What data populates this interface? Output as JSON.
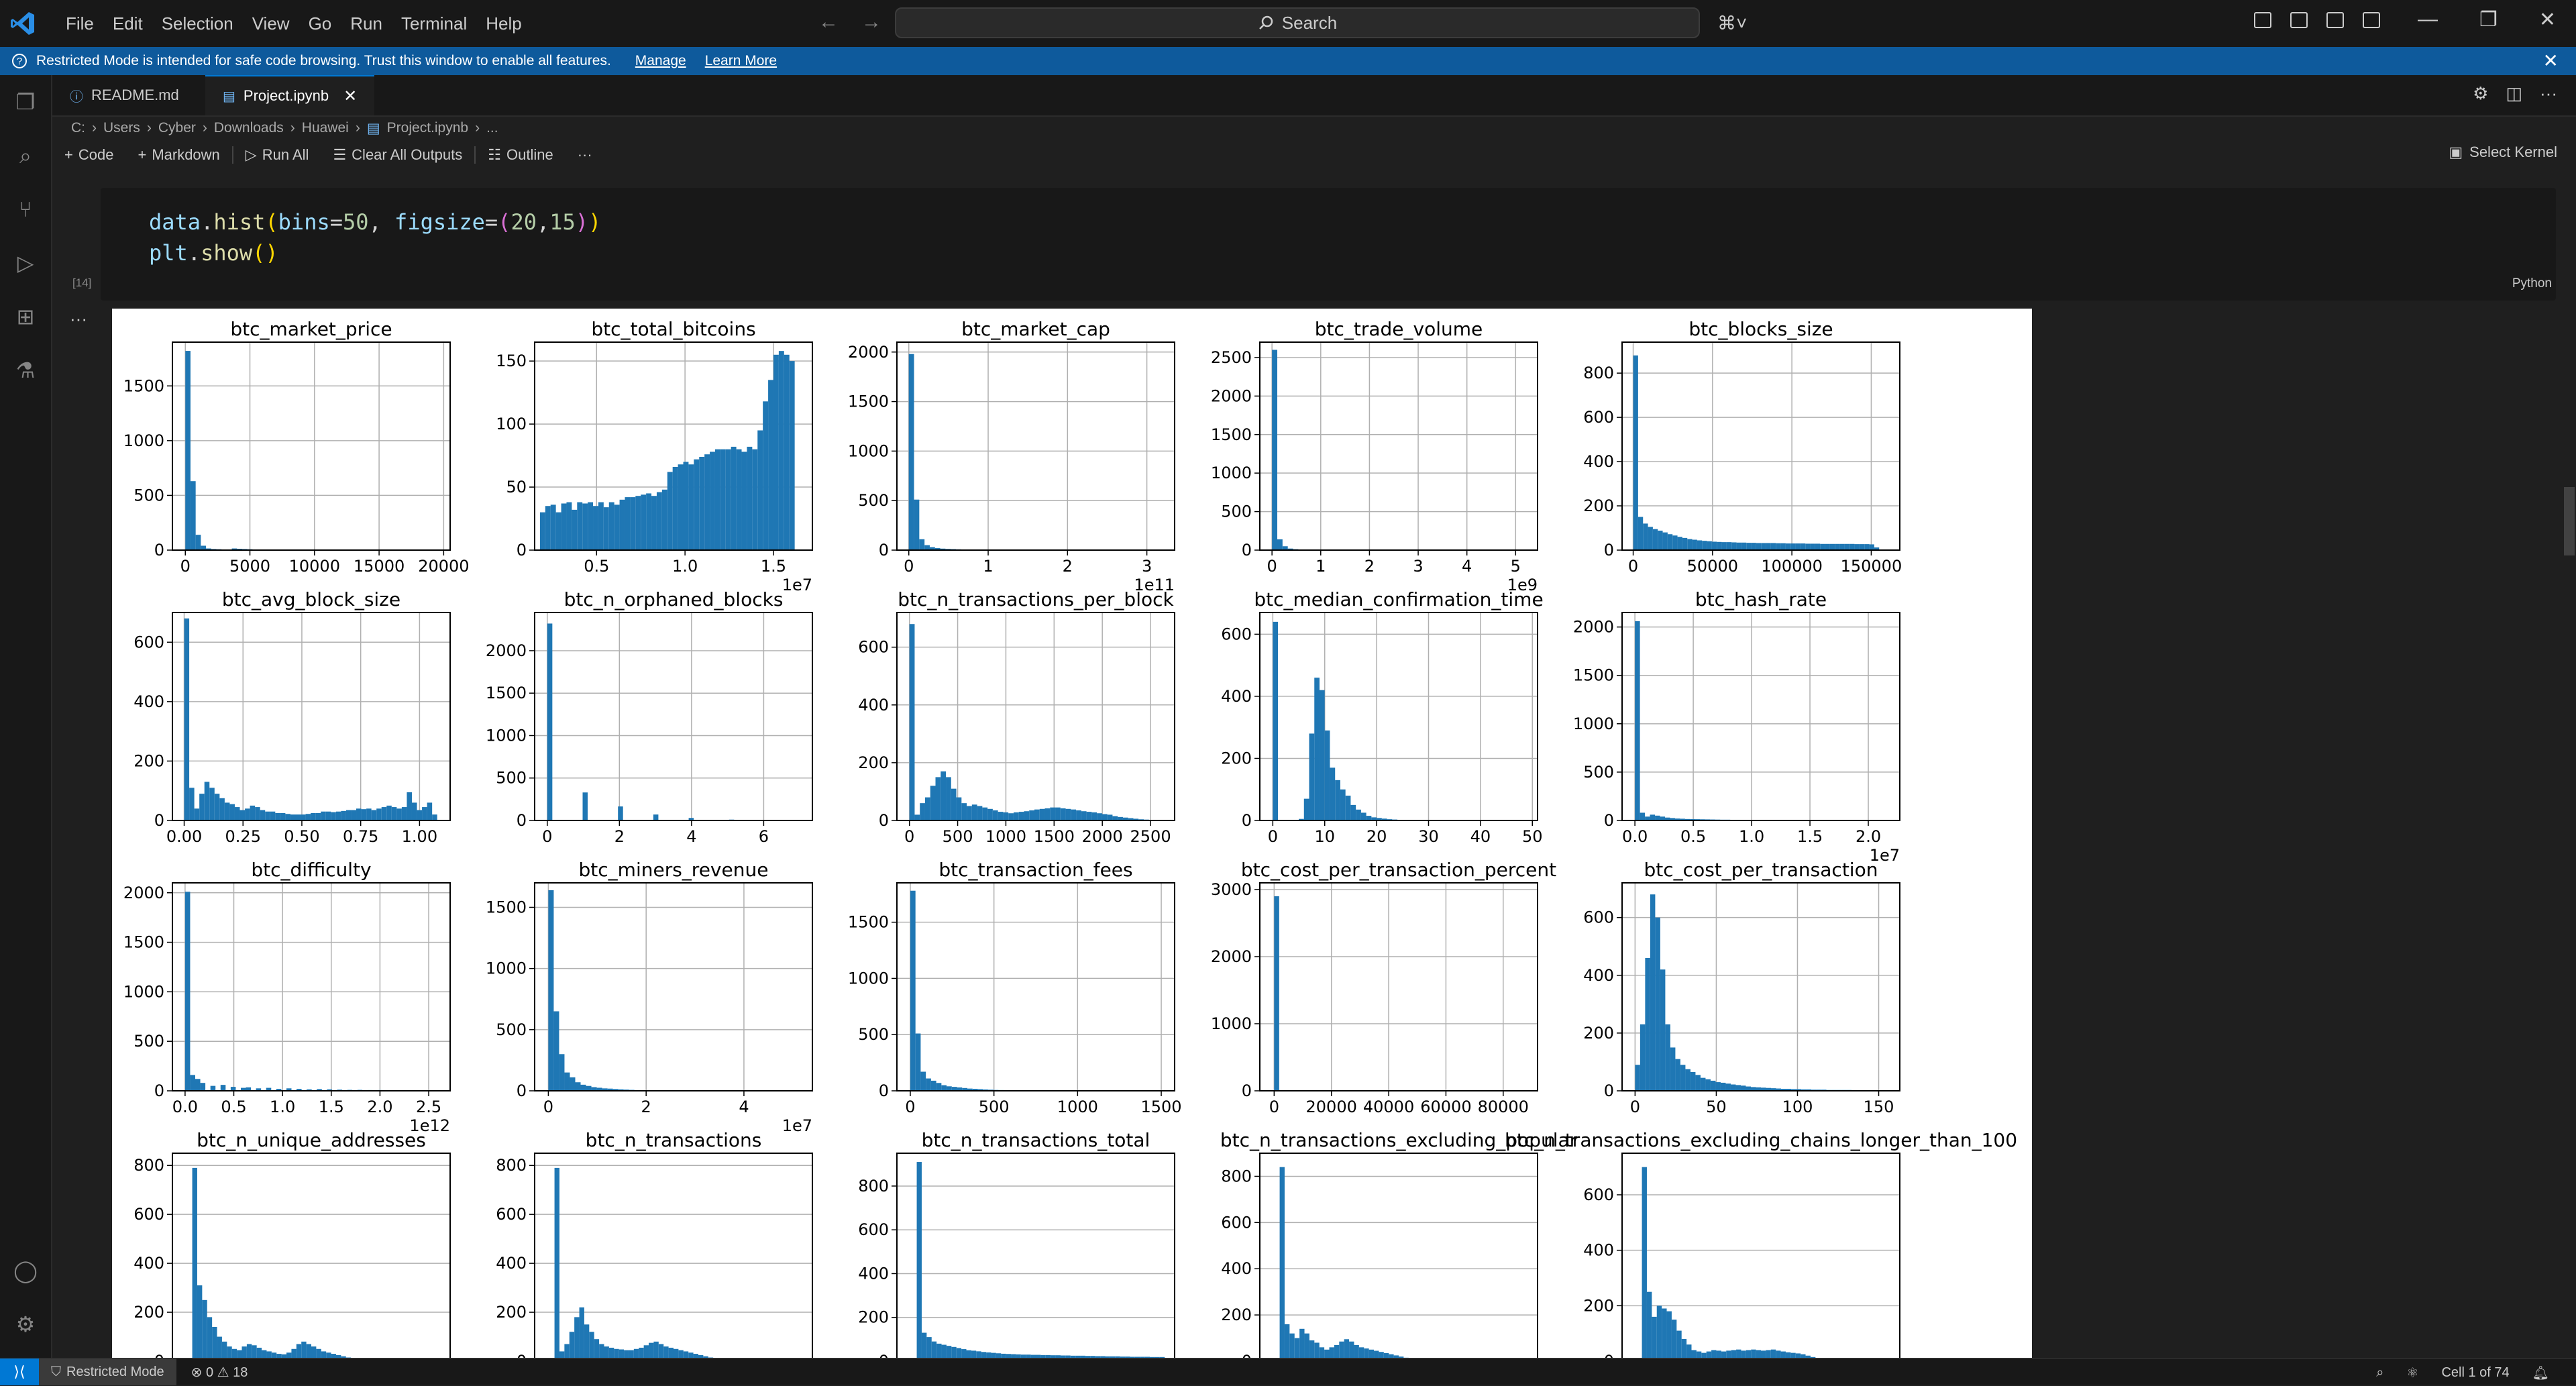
{
  "menu": [
    "File",
    "Edit",
    "Selection",
    "View",
    "Go",
    "Run",
    "Terminal",
    "Help"
  ],
  "search": {
    "label": "Search"
  },
  "banner": {
    "text": "Restricted Mode is intended for safe code browsing. Trust this window to enable all features.",
    "manage": "Manage",
    "learn_more": "Learn More"
  },
  "tabs": [
    {
      "label": "README.md"
    },
    {
      "label": "Project.ipynb"
    }
  ],
  "breadcrumb": [
    "C:",
    "Users",
    "Cyber",
    "Downloads",
    "Huawei",
    "Project.ipynb",
    "..."
  ],
  "toolbar": {
    "code": "Code",
    "markdown": "Markdown",
    "run_all": "Run All",
    "clear": "Clear All Outputs",
    "outline": "Outline",
    "more": "···",
    "kernel": "Select Kernel"
  },
  "cell": {
    "execution_count": "[14]",
    "language": "Python",
    "line1": {
      "obj": "data",
      "fn": "hist",
      "p1": "bins",
      "v1": "50",
      "p2": "figsize",
      "v2a": "20",
      "v2b": "15"
    },
    "line2": {
      "obj": "plt",
      "fn": "show"
    }
  },
  "status": {
    "restricted": "Restricted Mode",
    "problems": "⊗ 0 ⚠ 18",
    "cell": "Cell 1 of 74"
  },
  "colors": {
    "bar": "#1f77b4",
    "accent": "#0078d4",
    "banner": "#0e5a9c"
  },
  "chart_data": [
    {
      "type": "bar",
      "title": "btc_market_price",
      "xticks": [
        "0",
        "5000",
        "10000",
        "15000",
        "20000"
      ],
      "xlim": [
        -1000,
        20500
      ],
      "ylim": [
        0,
        1900
      ],
      "yticks": [
        0,
        500,
        1000,
        1500
      ],
      "offset": "",
      "bin_start": 0,
      "bin_width": 400,
      "values": [
        1820,
        630,
        140,
        40,
        15,
        10,
        8,
        6,
        5,
        15,
        12,
        10,
        8,
        6,
        5
      ]
    },
    {
      "type": "bar",
      "title": "btc_total_bitcoins",
      "xticks": [
        "0.5",
        "1.0",
        "1.5"
      ],
      "xlim": [
        0.15,
        1.72
      ],
      "ylim": [
        0,
        165
      ],
      "yticks": [
        0,
        50,
        100,
        150
      ],
      "offset": "1e7",
      "bin_start": 0.18,
      "bin_width": 0.03,
      "values": [
        30,
        35,
        36,
        30,
        37,
        38,
        32,
        38,
        37,
        38,
        35,
        38,
        34,
        38,
        36,
        40,
        42,
        42,
        43,
        44,
        45,
        43,
        46,
        48,
        62,
        66,
        68,
        70,
        68,
        72,
        74,
        76,
        78,
        80,
        80,
        80,
        82,
        80,
        78,
        82,
        80,
        95,
        118,
        135,
        155,
        158,
        155,
        150
      ]
    },
    {
      "type": "bar",
      "title": "btc_market_cap",
      "xticks": [
        "0",
        "1",
        "2",
        "3"
      ],
      "xlim": [
        -0.15,
        3.35
      ],
      "ylim": [
        0,
        2100
      ],
      "yticks": [
        0,
        500,
        1000,
        1500,
        2000
      ],
      "offset": "1e11",
      "bin_start": 0,
      "bin_width": 0.066,
      "values": [
        1980,
        510,
        110,
        50,
        30,
        20,
        15,
        12,
        10,
        8,
        6,
        5,
        4,
        4,
        3,
        3,
        2,
        2,
        2,
        2
      ]
    },
    {
      "type": "bar",
      "title": "btc_trade_volume",
      "xticks": [
        "0",
        "1",
        "2",
        "3",
        "4",
        "5"
      ],
      "xlim": [
        -0.25,
        5.45
      ],
      "ylim": [
        0,
        2700
      ],
      "yticks": [
        0,
        500,
        1000,
        1500,
        2000,
        2500
      ],
      "offset": "1e9",
      "bin_start": 0,
      "bin_width": 0.108,
      "values": [
        2600,
        140,
        50,
        20,
        12,
        8,
        5,
        4,
        3,
        2
      ]
    },
    {
      "type": "bar",
      "title": "btc_blocks_size",
      "xticks": [
        "0",
        "50000",
        "100000",
        "150000"
      ],
      "xlim": [
        -7000,
        168000
      ],
      "ylim": [
        0,
        940
      ],
      "yticks": [
        0,
        200,
        400,
        600,
        800
      ],
      "offset": "",
      "bin_start": 0,
      "bin_width": 3100,
      "values": [
        880,
        150,
        120,
        105,
        95,
        88,
        80,
        72,
        66,
        60,
        55,
        50,
        47,
        44,
        42,
        40,
        38,
        37,
        36,
        36,
        35,
        34,
        34,
        33,
        33,
        32,
        32,
        32,
        32,
        31,
        31,
        30,
        30,
        30,
        30,
        29,
        29,
        29,
        28,
        28,
        28,
        28,
        28,
        28,
        28,
        27,
        27,
        27,
        26,
        12
      ]
    },
    {
      "type": "bar",
      "title": "btc_avg_block_size",
      "xticks": [
        "0.00",
        "0.25",
        "0.50",
        "0.75",
        "1.00"
      ],
      "xlim": [
        -0.05,
        1.13
      ],
      "ylim": [
        0,
        700
      ],
      "yticks": [
        0,
        200,
        400,
        600
      ],
      "offset": "",
      "bin_start": 0,
      "bin_width": 0.0215,
      "values": [
        680,
        110,
        40,
        90,
        130,
        110,
        90,
        75,
        60,
        55,
        45,
        35,
        40,
        50,
        45,
        35,
        30,
        30,
        25,
        25,
        22,
        20,
        20,
        20,
        22,
        25,
        25,
        30,
        30,
        28,
        30,
        32,
        35,
        35,
        40,
        38,
        40,
        35,
        40,
        45,
        50,
        45,
        40,
        45,
        95,
        60,
        35,
        45,
        60,
        20
      ]
    },
    {
      "type": "bar",
      "title": "btc_n_orphaned_blocks",
      "xticks": [
        "0",
        "2",
        "4",
        "6"
      ],
      "xlim": [
        -0.35,
        7.35
      ],
      "ylim": [
        0,
        2450
      ],
      "yticks": [
        0,
        500,
        1000,
        1500,
        2000
      ],
      "offset": "",
      "bin_start": 0,
      "bin_width": 0.14,
      "values": [
        2320,
        0,
        0,
        0,
        0,
        0,
        0,
        330,
        0,
        0,
        0,
        0,
        0,
        0,
        165,
        0,
        0,
        0,
        0,
        0,
        0,
        70,
        0,
        0,
        0,
        0,
        0,
        0,
        30,
        0,
        0,
        0,
        0,
        0,
        0,
        0,
        10
      ]
    },
    {
      "type": "bar",
      "title": "btc_n_transactions_per_block",
      "xticks": [
        "0",
        "500",
        "1000",
        "1500",
        "2000",
        "2500"
      ],
      "xlim": [
        -130,
        2750
      ],
      "ylim": [
        0,
        720
      ],
      "yticks": [
        0,
        200,
        400,
        600
      ],
      "offset": "",
      "bin_start": 0,
      "bin_width": 54,
      "values": [
        680,
        20,
        60,
        80,
        120,
        150,
        170,
        150,
        110,
        80,
        60,
        50,
        55,
        50,
        45,
        40,
        35,
        30,
        28,
        25,
        28,
        30,
        32,
        35,
        38,
        40,
        42,
        45,
        45,
        42,
        40,
        38,
        35,
        32,
        30,
        28,
        25,
        22,
        20,
        15,
        12,
        10,
        8,
        6,
        4,
        3,
        2,
        2,
        1,
        1
      ]
    },
    {
      "type": "bar",
      "title": "btc_median_confirmation_time",
      "xticks": [
        "0",
        "10",
        "20",
        "30",
        "40",
        "50"
      ],
      "xlim": [
        -2.5,
        51
      ],
      "ylim": [
        0,
        670
      ],
      "yticks": [
        0,
        200,
        400,
        600
      ],
      "offset": "",
      "bin_start": 0,
      "bin_width": 1,
      "values": [
        640,
        2,
        2,
        2,
        2,
        5,
        70,
        280,
        460,
        420,
        290,
        170,
        130,
        100,
        80,
        50,
        35,
        25,
        15,
        10,
        8,
        6,
        4,
        3,
        2,
        2,
        1,
        1,
        1,
        1,
        1,
        0,
        0,
        0,
        0,
        0,
        0,
        0,
        0,
        0,
        0,
        0,
        0,
        0,
        0,
        0,
        0,
        0,
        0,
        1
      ]
    },
    {
      "type": "bar",
      "title": "btc_hash_rate",
      "xticks": [
        "0.0",
        "0.5",
        "1.0",
        "1.5",
        "2.0"
      ],
      "xlim": [
        -0.11,
        2.27
      ],
      "ylim": [
        0,
        2150
      ],
      "yticks": [
        0,
        500,
        1000,
        1500,
        2000
      ],
      "offset": "1e7",
      "bin_start": 0,
      "bin_width": 0.043,
      "values": [
        2060,
        80,
        40,
        60,
        50,
        40,
        30,
        25,
        20,
        18,
        15,
        14,
        13,
        12,
        11,
        10,
        9,
        8,
        8,
        7,
        7,
        6,
        6,
        5,
        5,
        5,
        5,
        4,
        4,
        4,
        4,
        4,
        3,
        3,
        3,
        3,
        3,
        3,
        3,
        2,
        2,
        2,
        2,
        2,
        2,
        2,
        2,
        2,
        2,
        2
      ]
    },
    {
      "type": "bar",
      "title": "btc_difficulty",
      "xticks": [
        "0.0",
        "0.5",
        "1.0",
        "1.5",
        "2.0",
        "2.5"
      ],
      "xlim": [
        -0.13,
        2.72
      ],
      "ylim": [
        0,
        2100
      ],
      "yticks": [
        0,
        500,
        1000,
        1500,
        2000
      ],
      "offset": "1e12",
      "bin_start": 0,
      "bin_width": 0.052,
      "values": [
        2010,
        160,
        120,
        80,
        0,
        50,
        0,
        60,
        0,
        40,
        0,
        30,
        35,
        0,
        25,
        0,
        30,
        0,
        20,
        0,
        25,
        0,
        20,
        0,
        15,
        0,
        18,
        0,
        15,
        0,
        12,
        0,
        10,
        0,
        10,
        0,
        8,
        0,
        8,
        0,
        6,
        0,
        6,
        0,
        5,
        0,
        5,
        0,
        4,
        4
      ]
    },
    {
      "type": "bar",
      "title": "btc_miners_revenue",
      "xticks": [
        "0",
        "2",
        "4"
      ],
      "xlim": [
        -0.28,
        5.4
      ],
      "ylim": [
        0,
        1700
      ],
      "yticks": [
        0,
        500,
        1000,
        1500
      ],
      "offset": "1e7",
      "bin_start": 0,
      "bin_width": 0.11,
      "values": [
        1640,
        650,
        300,
        150,
        110,
        70,
        50,
        40,
        30,
        25,
        20,
        18,
        15,
        12,
        10,
        8,
        6,
        5,
        5,
        4,
        4,
        3,
        3,
        3,
        2,
        2,
        2,
        2,
        2,
        2,
        2,
        2,
        2,
        2,
        2,
        2,
        1,
        1,
        1,
        1
      ]
    },
    {
      "type": "bar",
      "title": "btc_transaction_fees",
      "xticks": [
        "0",
        "500",
        "1000",
        "1500"
      ],
      "xlim": [
        -80,
        1580
      ],
      "ylim": [
        0,
        1850
      ],
      "yticks": [
        0,
        500,
        1000,
        1500
      ],
      "offset": "",
      "bin_start": 0,
      "bin_width": 31,
      "values": [
        1780,
        510,
        170,
        110,
        90,
        70,
        50,
        40,
        35,
        30,
        25,
        20,
        18,
        15,
        12,
        10,
        8,
        7,
        6,
        5,
        5,
        4,
        4,
        3,
        3,
        3,
        2,
        2,
        2,
        2,
        2,
        2,
        2,
        1,
        1,
        1,
        1,
        1,
        1,
        1
      ]
    },
    {
      "type": "bar",
      "title": "btc_cost_per_transaction_percent",
      "xticks": [
        "0",
        "20000",
        "40000",
        "60000",
        "80000"
      ],
      "xlim": [
        -5000,
        92000
      ],
      "ylim": [
        0,
        3100
      ],
      "yticks": [
        0,
        1000,
        2000,
        3000
      ],
      "offset": "",
      "bin_start": 0,
      "bin_width": 1760,
      "values": [
        2900,
        3,
        2,
        1
      ]
    },
    {
      "type": "bar",
      "title": "btc_cost_per_transaction",
      "xticks": [
        "0",
        "50",
        "100",
        "150"
      ],
      "xlim": [
        -8,
        163
      ],
      "ylim": [
        0,
        720
      ],
      "yticks": [
        0,
        200,
        400,
        600
      ],
      "offset": "",
      "bin_start": 0,
      "bin_width": 3.1,
      "values": [
        90,
        230,
        460,
        680,
        600,
        420,
        230,
        150,
        110,
        90,
        75,
        65,
        55,
        45,
        40,
        35,
        30,
        28,
        25,
        22,
        20,
        18,
        15,
        13,
        12,
        11,
        10,
        9,
        8,
        7,
        7,
        6,
        6,
        5,
        5,
        4,
        4,
        4,
        3,
        3,
        3,
        3,
        3,
        2,
        2,
        2,
        2,
        2,
        2,
        2
      ]
    },
    {
      "type": "bar",
      "title": "btc_n_unique_addresses",
      "xticks": [],
      "xlim": [
        -0.1,
        1.3
      ],
      "ylim": [
        0,
        850
      ],
      "yticks": [
        0,
        200,
        400,
        600,
        800
      ],
      "offset": "",
      "bin_start": 0,
      "bin_width": 0.025,
      "values": [
        790,
        310,
        250,
        180,
        140,
        100,
        80,
        60,
        50,
        45,
        60,
        70,
        65,
        55,
        45,
        40,
        35,
        30,
        28,
        35,
        50,
        70,
        80,
        70,
        60,
        50,
        40,
        35,
        30,
        25,
        20,
        15,
        12,
        10,
        8,
        6,
        5,
        4,
        3,
        2
      ]
    },
    {
      "type": "bar",
      "title": "btc_n_transactions",
      "xticks": [],
      "xlim": [
        -0.1,
        1.3
      ],
      "ylim": [
        0,
        850
      ],
      "yticks": [
        0,
        200,
        400,
        600,
        800
      ],
      "offset": "",
      "bin_start": 0,
      "bin_width": 0.025,
      "values": [
        790,
        40,
        70,
        120,
        180,
        220,
        150,
        120,
        90,
        70,
        60,
        55,
        50,
        48,
        45,
        45,
        50,
        55,
        65,
        75,
        80,
        70,
        60,
        55,
        50,
        45,
        40,
        35,
        30,
        25,
        20,
        15,
        10,
        8,
        5,
        3,
        2,
        1,
        1,
        1
      ]
    },
    {
      "type": "bar",
      "title": "btc_n_transactions_total",
      "xticks": [],
      "xlim": [
        -0.1,
        1.3
      ],
      "ylim": [
        0,
        950
      ],
      "yticks": [
        0,
        200,
        400,
        600,
        800
      ],
      "offset": "",
      "bin_start": 0,
      "bin_width": 0.025,
      "values": [
        910,
        130,
        110,
        90,
        80,
        75,
        70,
        65,
        60,
        55,
        50,
        48,
        45,
        42,
        40,
        38,
        36,
        34,
        33,
        32,
        31,
        30,
        30,
        29,
        29,
        28,
        28,
        27,
        27,
        26,
        26,
        25,
        25,
        25,
        24,
        24,
        23,
        23,
        22,
        22,
        22,
        21,
        21,
        20,
        20,
        20,
        20,
        19,
        19,
        19
      ]
    },
    {
      "type": "bar",
      "title": "btc_n_transactions_excluding_popular",
      "xticks": [],
      "xlim": [
        -0.1,
        1.3
      ],
      "ylim": [
        0,
        900
      ],
      "yticks": [
        0,
        200,
        400,
        600,
        800
      ],
      "offset": "",
      "bin_start": 0,
      "bin_width": 0.025,
      "values": [
        840,
        160,
        120,
        100,
        140,
        120,
        90,
        80,
        60,
        50,
        60,
        70,
        85,
        95,
        85,
        70,
        60,
        55,
        50,
        45,
        40,
        35,
        30,
        25,
        20,
        15,
        10,
        8,
        6,
        4,
        3,
        2,
        1,
        1,
        1,
        1,
        1,
        1,
        1,
        1
      ]
    },
    {
      "type": "bar",
      "title": "btc_n_transactions_excluding_chains_longer_than_100",
      "xticks": [],
      "xlim": [
        -0.1,
        1.3
      ],
      "ylim": [
        0,
        750
      ],
      "yticks": [
        0,
        200,
        400,
        600
      ],
      "offset": "",
      "bin_start": 0,
      "bin_width": 0.025,
      "values": [
        700,
        250,
        160,
        200,
        190,
        180,
        150,
        110,
        80,
        60,
        40,
        35,
        30,
        35,
        40,
        38,
        35,
        38,
        40,
        42,
        38,
        40,
        42,
        40,
        38,
        40,
        42,
        38,
        35,
        32,
        30,
        28,
        25,
        20,
        15,
        12,
        10,
        8,
        6,
        4
      ]
    }
  ]
}
